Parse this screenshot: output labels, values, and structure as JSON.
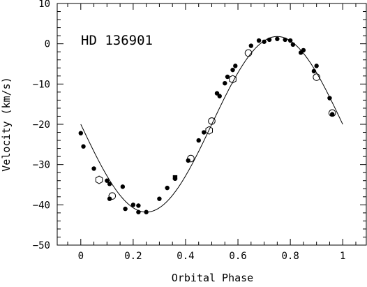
{
  "chart_data": {
    "type": "scatter",
    "title": "",
    "annotation": "HD 136901",
    "xlabel": "Orbital Phase",
    "ylabel": "Velocity (km/s)",
    "xlim": [
      -0.09,
      1.09
    ],
    "ylim": [
      -50,
      10
    ],
    "x_ticks": [
      0,
      0.2,
      0.4,
      0.6,
      0.8,
      1
    ],
    "x_tick_labels": [
      "0",
      "0.2",
      "0.4",
      "0.6",
      "0.8",
      "1"
    ],
    "y_ticks": [
      10,
      0,
      -10,
      -20,
      -30,
      -40,
      -50
    ],
    "y_tick_labels": [
      "10",
      "0",
      "−10",
      "−20",
      "−30",
      "−40",
      "−50"
    ],
    "grid": false,
    "legend": "none",
    "colors": {
      "axes": "#000000",
      "markers": "#000000",
      "curve": "#000000",
      "background": "#ffffff"
    },
    "series": [
      {
        "marker": "filled-circle",
        "points": [
          [
            0.0,
            -22.2
          ],
          [
            0.01,
            -25.5
          ],
          [
            0.05,
            -31.0
          ],
          [
            0.1,
            -34.0
          ],
          [
            0.11,
            -34.8
          ],
          [
            0.11,
            -38.5
          ],
          [
            0.16,
            -35.5
          ],
          [
            0.17,
            -41.0
          ],
          [
            0.2,
            -40.0
          ],
          [
            0.22,
            -41.8
          ],
          [
            0.22,
            -40.2
          ],
          [
            0.25,
            -41.8
          ],
          [
            0.3,
            -38.5
          ],
          [
            0.33,
            -35.8
          ],
          [
            0.36,
            -33.5
          ],
          [
            0.41,
            -29.0
          ],
          [
            0.45,
            -24.0
          ],
          [
            0.47,
            -22.0
          ],
          [
            0.52,
            -12.3
          ],
          [
            0.53,
            -13.0
          ],
          [
            0.55,
            -9.8
          ],
          [
            0.56,
            -8.2
          ],
          [
            0.58,
            -6.5
          ],
          [
            0.59,
            -5.5
          ],
          [
            0.65,
            -0.5
          ],
          [
            0.68,
            0.8
          ],
          [
            0.7,
            0.5
          ],
          [
            0.72,
            1.0
          ],
          [
            0.75,
            1.2
          ],
          [
            0.78,
            1.0
          ],
          [
            0.8,
            0.8
          ],
          [
            0.81,
            -0.2
          ],
          [
            0.84,
            -2.2
          ],
          [
            0.85,
            -1.6
          ],
          [
            0.89,
            -6.8
          ],
          [
            0.9,
            -5.5
          ],
          [
            0.95,
            -13.5
          ],
          [
            0.96,
            -17.5
          ]
        ]
      },
      {
        "marker": "filled-square",
        "points": [
          [
            0.36,
            -33.2
          ]
        ]
      },
      {
        "marker": "open-circle",
        "points": [
          [
            0.12,
            -37.8
          ],
          [
            0.42,
            -28.5
          ],
          [
            0.5,
            -19.2
          ],
          [
            0.64,
            -2.3
          ],
          [
            0.9,
            -8.3
          ],
          [
            0.96,
            -17.2
          ]
        ]
      },
      {
        "marker": "open-hexagon",
        "points": [
          [
            0.07,
            -33.8
          ],
          [
            0.49,
            -21.5
          ],
          [
            0.58,
            -8.8
          ]
        ]
      }
    ],
    "fit_curve": {
      "form": "sinusoid",
      "gamma": -20,
      "K": 21.8,
      "phase_of_minimum": 0.25,
      "x_range": [
        0,
        1
      ]
    }
  }
}
